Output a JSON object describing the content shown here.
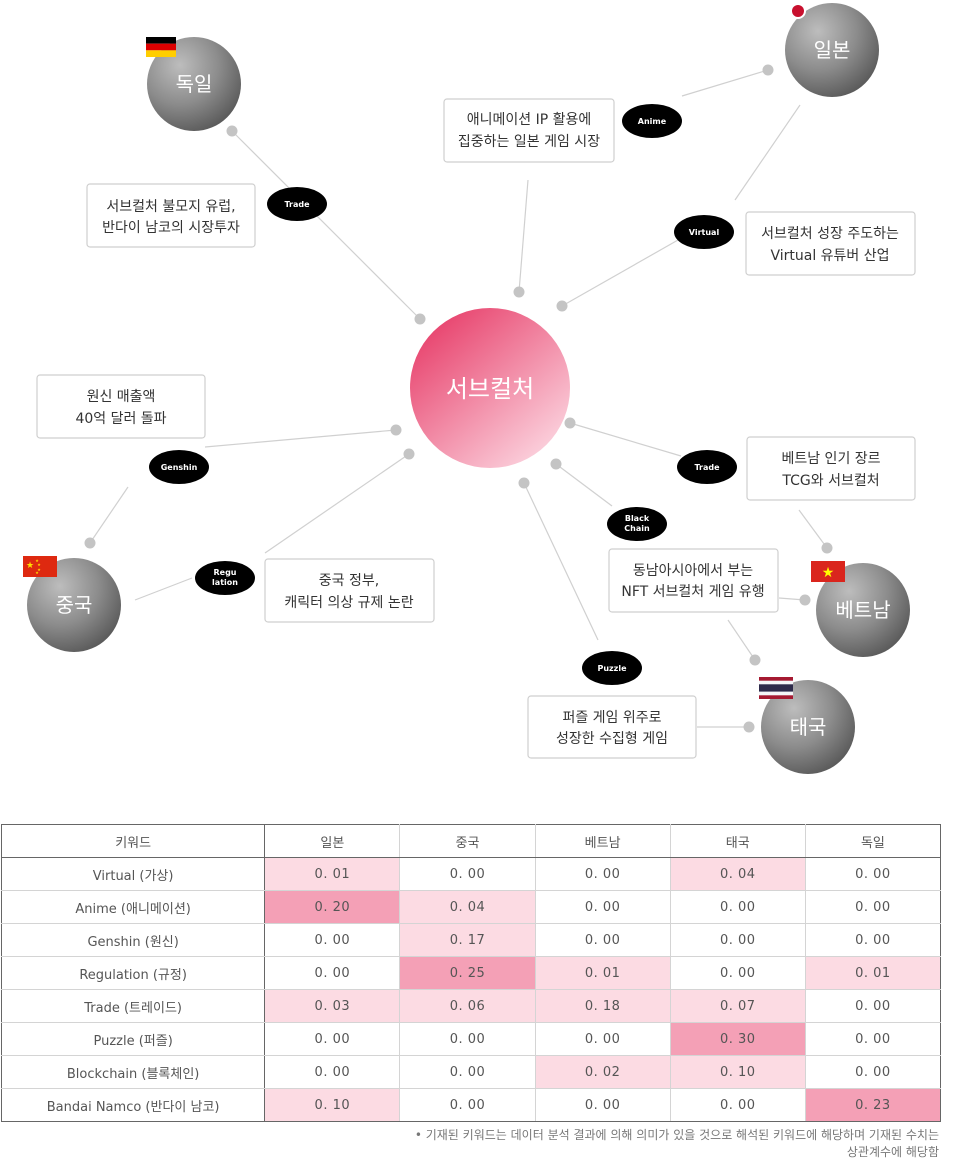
{
  "center": {
    "label": "서브컬처",
    "color_from": "#e8456f",
    "color_to": "#fbd0dc"
  },
  "countries": [
    {
      "id": "germany",
      "label": "독일",
      "flag": "germany-flag"
    },
    {
      "id": "japan",
      "label": "일본",
      "flag": "japan-flag"
    },
    {
      "id": "china",
      "label": "중국",
      "flag": "china-flag"
    },
    {
      "id": "vietnam",
      "label": "베트남",
      "flag": "vietnam-flag"
    },
    {
      "id": "thailand",
      "label": "태국",
      "flag": "thailand-flag"
    }
  ],
  "keyword_pills": [
    {
      "id": "trade-germany",
      "lines": [
        "Trade"
      ]
    },
    {
      "id": "anime",
      "lines": [
        "Anime"
      ]
    },
    {
      "id": "virtual",
      "lines": [
        "Virtual"
      ]
    },
    {
      "id": "genshin",
      "lines": [
        "Genshin"
      ]
    },
    {
      "id": "regulation",
      "lines": [
        "Regu",
        "lation"
      ]
    },
    {
      "id": "trade-vietnam",
      "lines": [
        "Trade"
      ]
    },
    {
      "id": "blockchain",
      "lines": [
        "Black",
        "Chain"
      ]
    },
    {
      "id": "puzzle",
      "lines": [
        "Puzzle"
      ]
    }
  ],
  "insight_boxes": [
    {
      "id": "germany-box",
      "lines": [
        "서브컬처 불모지 유럽,",
        "반다이 남코의 시장투자"
      ]
    },
    {
      "id": "anime-box",
      "lines": [
        "애니메이션 IP 활용에",
        "집중하는 일본 게임 시장"
      ]
    },
    {
      "id": "virtual-box",
      "lines": [
        "서브컬처 성장 주도하는",
        "Virtual 유튜버 산업"
      ]
    },
    {
      "id": "genshin-box",
      "lines": [
        "원신 매출액",
        "40억 달러 돌파"
      ]
    },
    {
      "id": "regulation-box",
      "lines": [
        "중국 정부,",
        "캐릭터 의상 규제 논란"
      ]
    },
    {
      "id": "trade-vietnam-box",
      "lines": [
        "베트남 인기 장르",
        "TCG와 서브컬처"
      ]
    },
    {
      "id": "blockchain-box",
      "lines": [
        "동남아시아에서 부는",
        "NFT 서브컬처 게임 유행"
      ]
    },
    {
      "id": "puzzle-box",
      "lines": [
        "퍼즐 게임 위주로",
        "성장한 수집형 게임"
      ]
    }
  ],
  "table": {
    "headers": [
      "키워드",
      "일본",
      "중국",
      "베트남",
      "태국",
      "독일"
    ],
    "rows": [
      {
        "keyword": "Virtual (가상)",
        "values": [
          "0. 01",
          "0. 00",
          "0. 00",
          "0. 04",
          "0. 00"
        ],
        "levels": [
          1,
          0,
          0,
          1,
          0
        ]
      },
      {
        "keyword": "Anime (애니메이션)",
        "values": [
          "0. 20",
          "0. 04",
          "0. 00",
          "0. 00",
          "0. 00"
        ],
        "levels": [
          3,
          1,
          0,
          0,
          0
        ]
      },
      {
        "keyword": "Genshin (원신)",
        "values": [
          "0. 00",
          "0. 17",
          "0. 00",
          "0. 00",
          "0. 00"
        ],
        "levels": [
          0,
          1,
          0,
          0,
          0
        ]
      },
      {
        "keyword": "Regulation (규정)",
        "values": [
          "0. 00",
          "0. 25",
          "0. 01",
          "0. 00",
          "0. 01"
        ],
        "levels": [
          0,
          3,
          1,
          0,
          1
        ]
      },
      {
        "keyword": "Trade (트레이드)",
        "values": [
          "0. 03",
          "0. 06",
          "0. 18",
          "0. 07",
          "0. 00"
        ],
        "levels": [
          1,
          1,
          1,
          1,
          0
        ]
      },
      {
        "keyword": "Puzzle (퍼즐)",
        "values": [
          "0. 00",
          "0. 00",
          "0. 00",
          "0. 30",
          "0. 00"
        ],
        "levels": [
          0,
          0,
          0,
          3,
          0
        ]
      },
      {
        "keyword": "Blockchain (블록체인)",
        "values": [
          "0. 00",
          "0. 00",
          "0. 02",
          "0. 10",
          "0. 00"
        ],
        "levels": [
          0,
          0,
          1,
          1,
          0
        ]
      },
      {
        "keyword": "Bandai Namco (반다이 남코)",
        "values": [
          "0. 10",
          "0. 00",
          "0. 00",
          "0. 00",
          "0. 23"
        ],
        "levels": [
          1,
          0,
          0,
          0,
          3
        ]
      }
    ],
    "level_colors": [
      "#ffffff",
      "#fcdbe3",
      "#f9bccb",
      "#f4a0b6"
    ]
  },
  "footnote": {
    "line1": "• 기재된 키워드는 데이터 분석 결과에 의해 의미가 있을 것으로 해석된 키워드에 해당하며 기재된 수치는",
    "line2": "상관계수에 해당함"
  }
}
